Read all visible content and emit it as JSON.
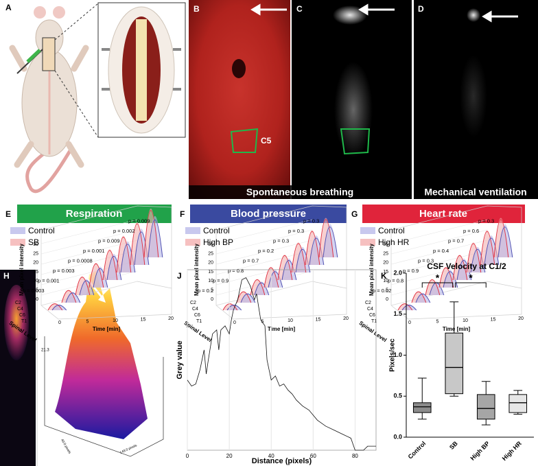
{
  "letters": [
    "A",
    "B",
    "C",
    "D",
    "E",
    "F",
    "G",
    "H",
    "I",
    "J",
    "K"
  ],
  "images": {
    "region_label": "C5",
    "spontaneous": "Spontaneous breathing",
    "mechanical": "Mechanical ventilation"
  },
  "axes_3d": {
    "y_label": "Mean pixel intensity",
    "z_label": "Spinal Level",
    "x_label": "Time [min]",
    "yticks": [
      0,
      5,
      10,
      15,
      20,
      25,
      30
    ],
    "xticks": [
      0,
      5,
      10,
      15,
      20
    ],
    "levels": [
      "C2",
      "C4",
      "C6",
      "T1"
    ]
  },
  "panels_3d": [
    {
      "title": "Respiration",
      "legend": [
        "Control",
        "SB"
      ],
      "pvalues": [
        "p = 0.003",
        "p = 0.001",
        "p = 0.003",
        "p = 0.0008",
        "p = 0.001",
        "p = 0.009",
        "p = 0.002",
        "p = 0.009"
      ]
    },
    {
      "title": "Blood pressure",
      "legend": [
        "Control",
        "High BP"
      ],
      "pvalues": [
        "p = 0.2",
        "p = 0.9",
        "p = 0.8",
        "p = 0.7",
        "p = 0.2",
        "p = 0.3",
        "p = 0.3",
        "p = 0.3"
      ]
    },
    {
      "title": "Heart rate",
      "legend": [
        "Control",
        "High HR"
      ],
      "pvalues": [
        "p = 0.02",
        "p = 0.8",
        "p = 0.9",
        "p = 0.3",
        "p = 0.4",
        "p = 0.7",
        "p = 0.6",
        "p = 0.3"
      ]
    }
  ],
  "surface": {
    "z_value": "21.3",
    "depth": "40.0 pixels",
    "width": "149.0 pixels"
  },
  "chart_data": [
    {
      "type": "line",
      "y_label": "Grey value",
      "x_label": "Distance (pixels)",
      "color": "#111111",
      "x": [
        0,
        2,
        4,
        6,
        8,
        9,
        10,
        12,
        14,
        15,
        16,
        18,
        20,
        21,
        22,
        24,
        26,
        28,
        30,
        32,
        33,
        35,
        37,
        38,
        40,
        42,
        44,
        46,
        48,
        50,
        52,
        55,
        58,
        62,
        66,
        70,
        74,
        78,
        80,
        84,
        86,
        90
      ],
      "values": [
        35,
        32,
        33,
        40,
        50,
        38,
        45,
        58,
        60,
        50,
        60,
        62,
        58,
        65,
        70,
        75,
        85,
        86,
        82,
        75,
        78,
        65,
        62,
        45,
        35,
        37,
        32,
        33,
        30,
        28,
        25,
        22,
        20,
        15,
        12,
        10,
        8,
        6,
        0,
        0,
        2,
        2
      ],
      "xlim": [
        0,
        90
      ],
      "xticks": [
        0,
        20,
        40,
        60,
        80
      ],
      "ylim": [
        0,
        90
      ],
      "grid": true
    },
    {
      "type": "box",
      "title": "CSF Velocity at C1/2",
      "y_label": "Pixels/sec",
      "categories": [
        "Control",
        "SB",
        "High BP",
        "High HR"
      ],
      "colors": [
        "#8c8c8c",
        "#c8c8c8",
        "#a6a6a6",
        "#e6e6e6"
      ],
      "min": [
        0.22,
        0.5,
        0.15,
        0.28
      ],
      "q1": [
        0.3,
        0.53,
        0.22,
        0.3
      ],
      "median": [
        0.37,
        0.85,
        0.35,
        0.42
      ],
      "q3": [
        0.42,
        1.27,
        0.52,
        0.52
      ],
      "max": [
        0.72,
        1.65,
        0.68,
        0.57
      ],
      "ylim": [
        0,
        2
      ],
      "yticks": [
        {
          "value": 0,
          "label": "0.0"
        },
        {
          "value": 0.5,
          "label": "0.5"
        },
        {
          "value": 1,
          "label": "1.0"
        },
        {
          "value": 1.5,
          "label": "1.5"
        },
        {
          "value": 2,
          "label": "2.0"
        }
      ],
      "annotations": [
        "*",
        "*"
      ]
    }
  ]
}
